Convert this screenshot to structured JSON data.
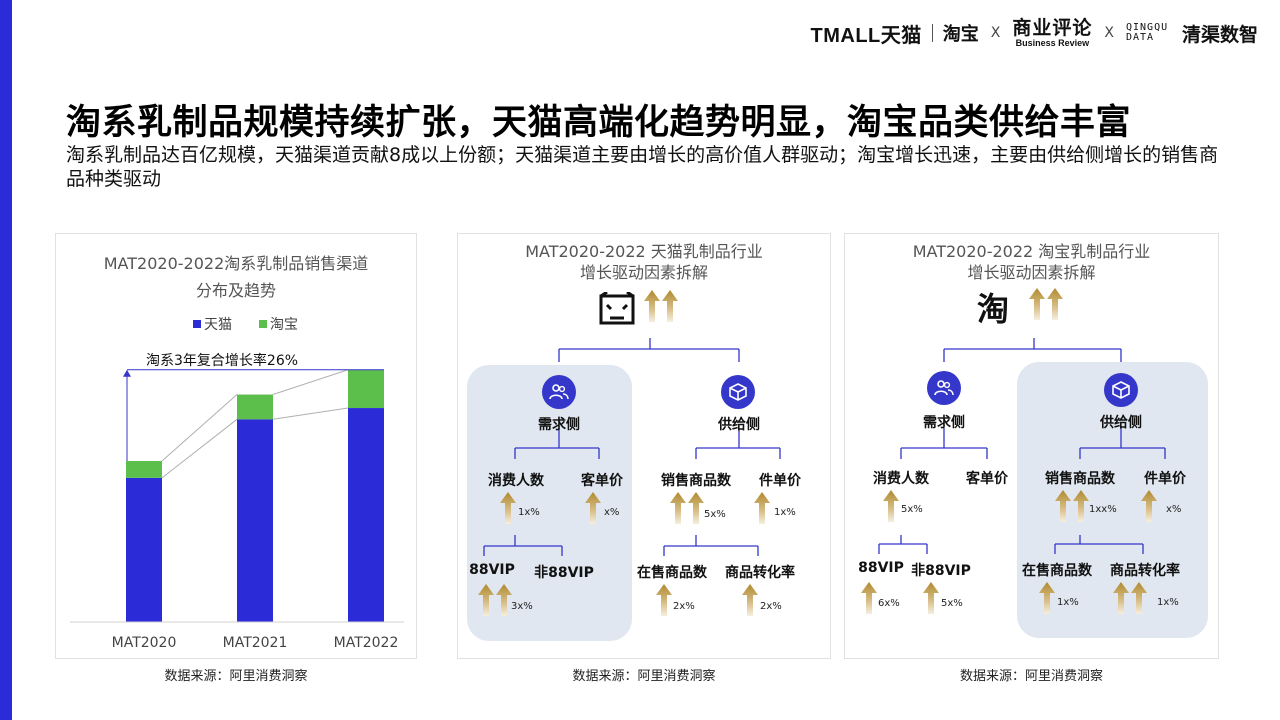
{
  "header": {
    "logos": {
      "tmall": "TMALL天猫",
      "taobao": "淘宝",
      "x1": "X",
      "business_review_cn": "商业评论",
      "business_review_en": "Business Review",
      "x2": "X",
      "qingqu_en": "QINGQU DATA",
      "qingqu_cn": "清渠数智"
    }
  },
  "title": "淘系乳制品规模持续扩张，天猫高端化趋势明显，淘宝品类供给丰富",
  "subtitle": "淘系乳制品达百亿规模，天猫渠道贡献8成以上份额；天猫渠道主要由增长的高价值人群驱动；淘宝增长迅速，主要由供给侧增长的销售商品种类驱动",
  "chart_panel": {
    "title_line1": "MAT2020-2022淘系乳制品销售渠道",
    "title_line2": "分布及趋势",
    "source": "数据来源：阿里消费洞察"
  },
  "chart_data": {
    "type": "bar",
    "stacked": true,
    "categories": [
      "MAT2020",
      "MAT2021",
      "MAT2022"
    ],
    "series": [
      {
        "name": "天猫",
        "color": "#2b2cd8",
        "values": [
          64,
          90,
          95
        ]
      },
      {
        "name": "淘宝",
        "color": "#5dbf4b",
        "values": [
          7.5,
          11,
          17
        ]
      }
    ],
    "ylim": [
      0,
      115
    ],
    "annotation": "淘系3年复合增长率26%",
    "legend": "top-center",
    "grid": false
  },
  "tmall_panel": {
    "title_line1": "MAT2020-2022 天猫乳制品行业",
    "title_line2": "增长驱动因素拆解",
    "brand_icon": "tmall-cat-icon",
    "demand": "需求侧",
    "supply": "供给侧",
    "consumers": "消费人数",
    "aov": "客单价",
    "products_sold": "销售商品数",
    "unit_price": "件单价",
    "vip": "88VIP",
    "non_vip": "非88VIP",
    "on_sale": "在售商品数",
    "conversion": "商品转化率",
    "consumers_pct": "1x%",
    "aov_pct": "x%",
    "products_pct": "5x%",
    "unit_price_pct": "1x%",
    "vip_pct": "3x%",
    "on_sale_pct": "2x%",
    "conversion_pct": "2x%",
    "source": "数据来源：阿里消费洞察"
  },
  "taobao_panel": {
    "title_line1": "MAT2020-2022 淘宝乳制品行业",
    "title_line2": "增长驱动因素拆解",
    "brand_icon": "taobao-logo-icon",
    "brand_glyph": "淘",
    "demand": "需求侧",
    "supply": "供给侧",
    "consumers": "消费人数",
    "aov": "客单价",
    "products_sold": "销售商品数",
    "unit_price": "件单价",
    "vip": "88VIP",
    "non_vip": "非88VIP",
    "on_sale": "在售商品数",
    "conversion": "商品转化率",
    "consumers_pct": "5x%",
    "products_pct": "1xx%",
    "unit_price_pct": "x%",
    "vip_pct": "6x%",
    "non_vip_pct": "5x%",
    "on_sale_pct": "1x%",
    "conversion_pct": "1x%",
    "source": "数据来源：阿里消费洞察"
  }
}
